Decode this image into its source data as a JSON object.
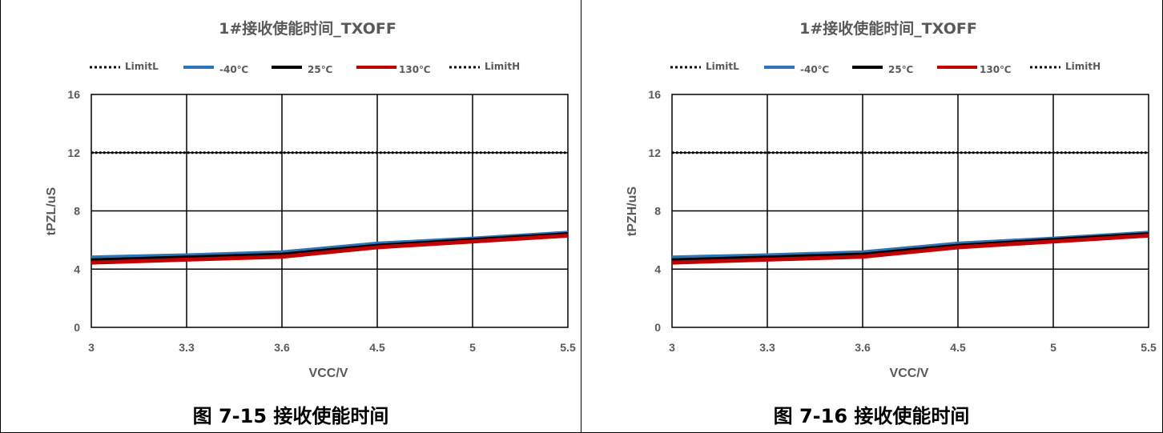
{
  "captions": [
    "图 7-15 接收使能时间",
    "图 7-16 接收使能时间"
  ],
  "colors": {
    "limit": "#000000",
    "m40": "#2e75b6",
    "25": "#000000",
    "130": "#c00000"
  },
  "chart_data": [
    {
      "type": "line",
      "title": "1#接收使能时间_TXOFF",
      "xlabel": "VCC/V",
      "ylabel": "tPZL/uS",
      "categories": [
        "3",
        "3.3",
        "3.6",
        "4.5",
        "5",
        "5.5"
      ],
      "ylim": [
        0,
        16
      ],
      "yticks": [
        0,
        4,
        8,
        12,
        16
      ],
      "grid": true,
      "legend_position": "top",
      "series": [
        {
          "name": "LimitL",
          "values": [
            null,
            null,
            null,
            null,
            null,
            null
          ],
          "style": "dotted"
        },
        {
          "name": "-40℃",
          "values": [
            4.8,
            4.95,
            5.15,
            5.75,
            6.1,
            6.5
          ]
        },
        {
          "name": "25℃",
          "values": [
            4.6,
            4.8,
            5.0,
            5.6,
            6.0,
            6.4
          ]
        },
        {
          "name": "130℃",
          "values": [
            4.45,
            4.65,
            4.85,
            5.5,
            5.9,
            6.3
          ]
        },
        {
          "name": "LimitH",
          "values": [
            12,
            12,
            12,
            12,
            12,
            12
          ],
          "style": "dotted"
        }
      ]
    },
    {
      "type": "line",
      "title": "1#接收使能时间_TXOFF",
      "xlabel": "VCC/V",
      "ylabel": "tPZH/uS",
      "categories": [
        "3",
        "3.3",
        "3.6",
        "4.5",
        "5",
        "5.5"
      ],
      "ylim": [
        0,
        16
      ],
      "yticks": [
        0,
        4,
        8,
        12,
        16
      ],
      "grid": true,
      "legend_position": "top",
      "series": [
        {
          "name": "LimitL",
          "values": [
            null,
            null,
            null,
            null,
            null,
            null
          ],
          "style": "dotted"
        },
        {
          "name": "-40℃",
          "values": [
            4.8,
            4.95,
            5.15,
            5.75,
            6.1,
            6.5
          ]
        },
        {
          "name": "25℃",
          "values": [
            4.6,
            4.8,
            5.0,
            5.6,
            6.0,
            6.4
          ]
        },
        {
          "name": "130℃",
          "values": [
            4.45,
            4.65,
            4.85,
            5.5,
            5.9,
            6.3
          ]
        },
        {
          "name": "LimitH",
          "values": [
            12,
            12,
            12,
            12,
            12,
            12
          ],
          "style": "dotted"
        }
      ]
    }
  ]
}
